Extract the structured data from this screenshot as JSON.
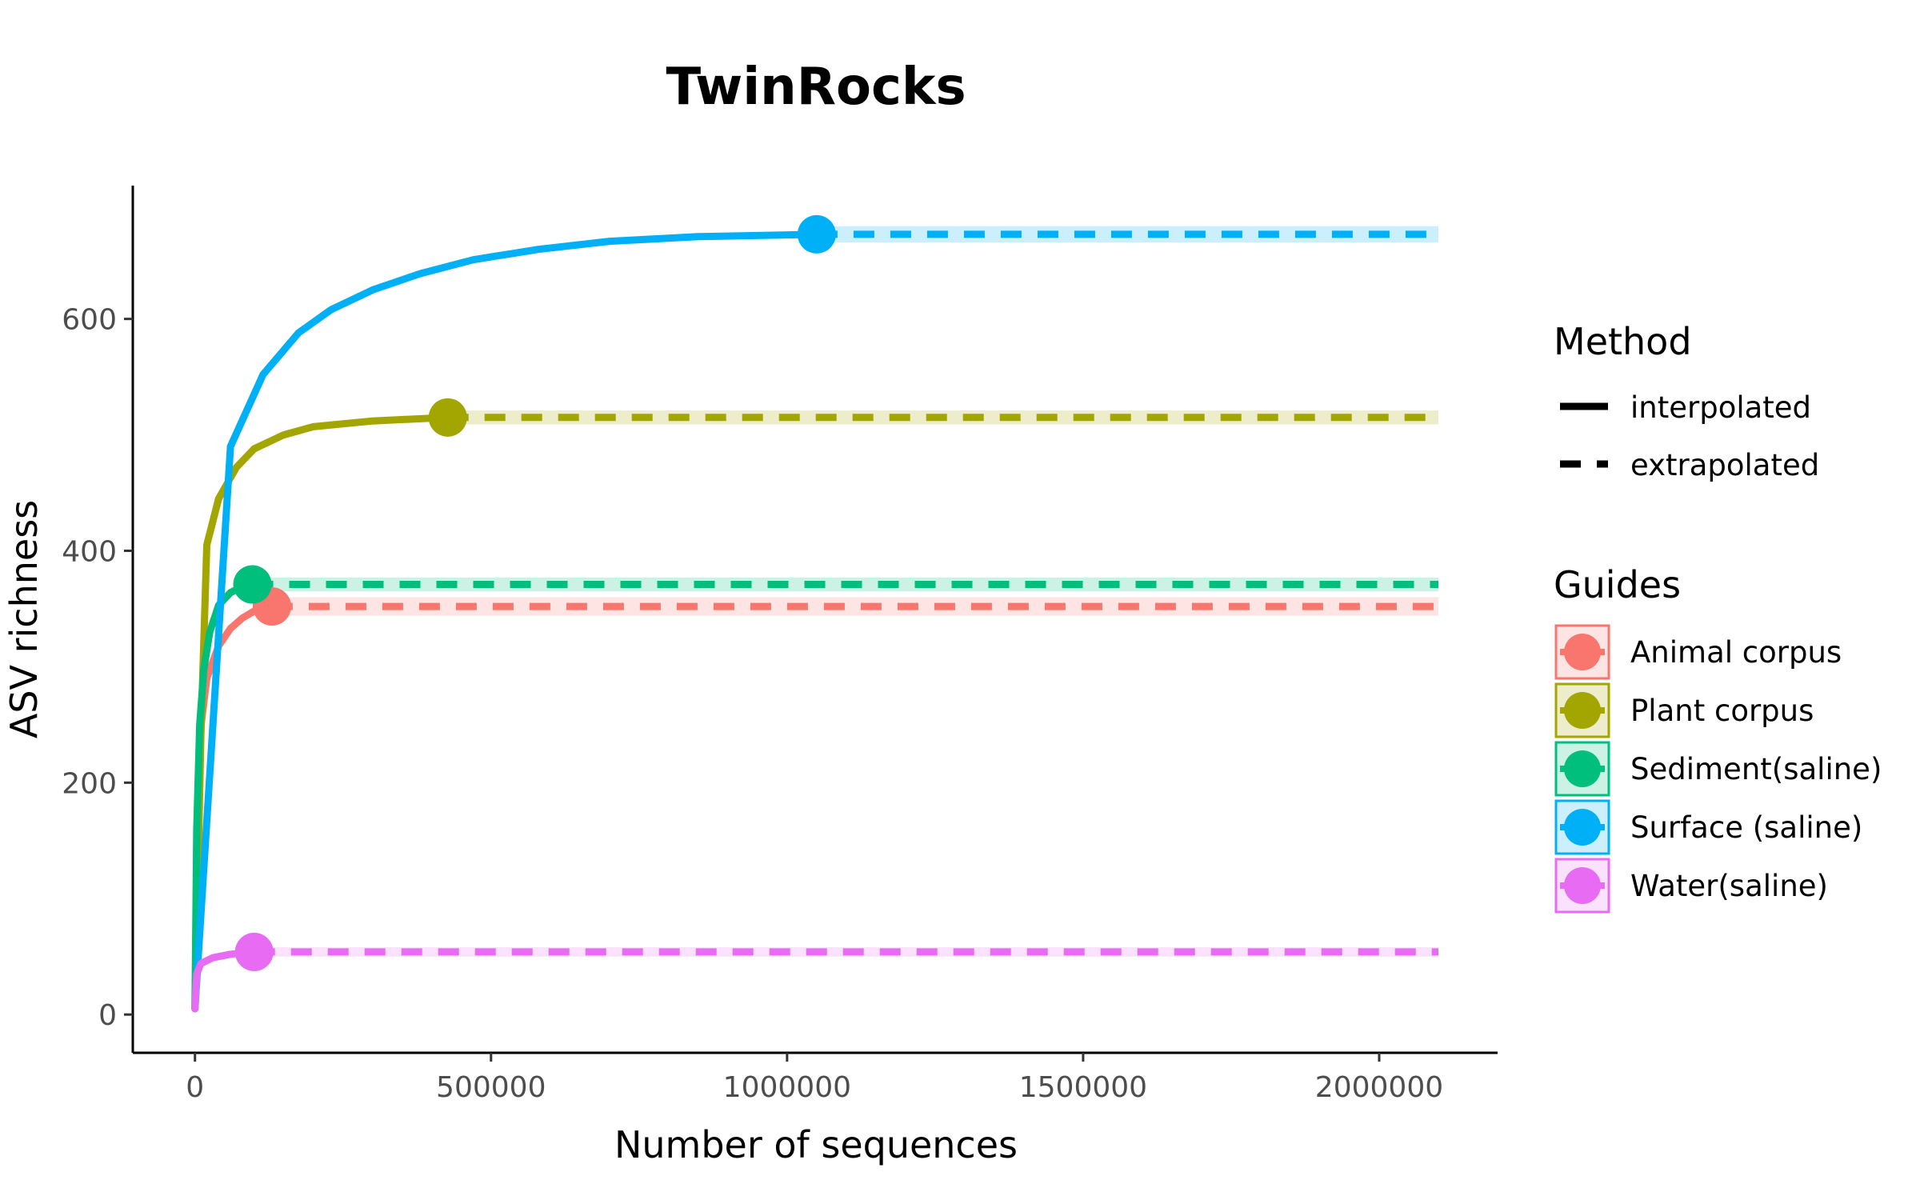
{
  "chart_data": {
    "type": "line",
    "title": "TwinRocks",
    "xlabel": "Number of sequences",
    "ylabel": "ASV richness",
    "xlim": [
      -105000,
      2200000
    ],
    "ylim": [
      -33,
      715
    ],
    "x_ticks": [
      0,
      500000,
      1000000,
      1500000,
      2000000
    ],
    "x_tick_labels": [
      "0",
      "500000",
      "1000000",
      "1500000",
      "2000000"
    ],
    "y_ticks": [
      0,
      200,
      400,
      600
    ],
    "y_tick_labels": [
      "0",
      "200",
      "400",
      "600"
    ],
    "grid": false,
    "legend_position": "right",
    "method_legend": {
      "title": "Method",
      "items": [
        {
          "label": "interpolated",
          "linetype": "solid"
        },
        {
          "label": "extrapolated",
          "linetype": "dashed"
        }
      ]
    },
    "series_legend_title": "Guides",
    "series": [
      {
        "name": "Animal corpus",
        "color": "#F8766D",
        "band_halfwidth": 8,
        "interpolated": [
          [
            0,
            5
          ],
          [
            8000,
            240
          ],
          [
            20000,
            290
          ],
          [
            40000,
            318
          ],
          [
            60000,
            333
          ],
          [
            80000,
            342
          ],
          [
            100000,
            348
          ],
          [
            130000,
            352
          ]
        ],
        "reference_point": [
          130000,
          352
        ],
        "extrapolated": [
          [
            130000,
            352
          ],
          [
            2100000,
            352
          ]
        ]
      },
      {
        "name": "Plant corpus",
        "color": "#A3A500",
        "band_halfwidth": 6,
        "interpolated": [
          [
            0,
            5
          ],
          [
            10000,
            240
          ],
          [
            20000,
            405
          ],
          [
            40000,
            445
          ],
          [
            70000,
            472
          ],
          [
            100000,
            488
          ],
          [
            150000,
            500
          ],
          [
            200000,
            507
          ],
          [
            300000,
            512
          ],
          [
            427000,
            515
          ]
        ],
        "reference_point": [
          427000,
          515
        ],
        "extrapolated": [
          [
            427000,
            515
          ],
          [
            2100000,
            515
          ]
        ]
      },
      {
        "name": "Sediment(saline)",
        "color": "#00BF7D",
        "band_halfwidth": 6,
        "interpolated": [
          [
            0,
            5
          ],
          [
            3000,
            160
          ],
          [
            8000,
            250
          ],
          [
            15000,
            298
          ],
          [
            25000,
            330
          ],
          [
            40000,
            353
          ],
          [
            60000,
            364
          ],
          [
            80000,
            369
          ],
          [
            97000,
            371
          ]
        ],
        "reference_point": [
          97000,
          371
        ],
        "extrapolated": [
          [
            97000,
            371
          ],
          [
            2100000,
            371
          ]
        ]
      },
      {
        "name": "Surface (saline)",
        "color": "#00B0F6",
        "band_halfwidth": 7,
        "interpolated": [
          [
            0,
            5
          ],
          [
            60000,
            490
          ],
          [
            115000,
            552
          ],
          [
            175000,
            588
          ],
          [
            230000,
            608
          ],
          [
            300000,
            625
          ],
          [
            380000,
            639
          ],
          [
            470000,
            651
          ],
          [
            580000,
            660
          ],
          [
            700000,
            667
          ],
          [
            850000,
            671
          ],
          [
            1050000,
            673
          ]
        ],
        "reference_point": [
          1050000,
          673
        ],
        "extrapolated": [
          [
            1050000,
            673
          ],
          [
            2100000,
            673
          ]
        ]
      },
      {
        "name": "Water(saline)",
        "color": "#E76BF3",
        "band_halfwidth": 4,
        "interpolated": [
          [
            0,
            5
          ],
          [
            3000,
            35
          ],
          [
            10000,
            44
          ],
          [
            30000,
            49
          ],
          [
            60000,
            52
          ],
          [
            100000,
            54
          ]
        ],
        "reference_point": [
          100000,
          54
        ],
        "extrapolated": [
          [
            100000,
            54
          ],
          [
            2100000,
            54
          ]
        ]
      }
    ]
  }
}
